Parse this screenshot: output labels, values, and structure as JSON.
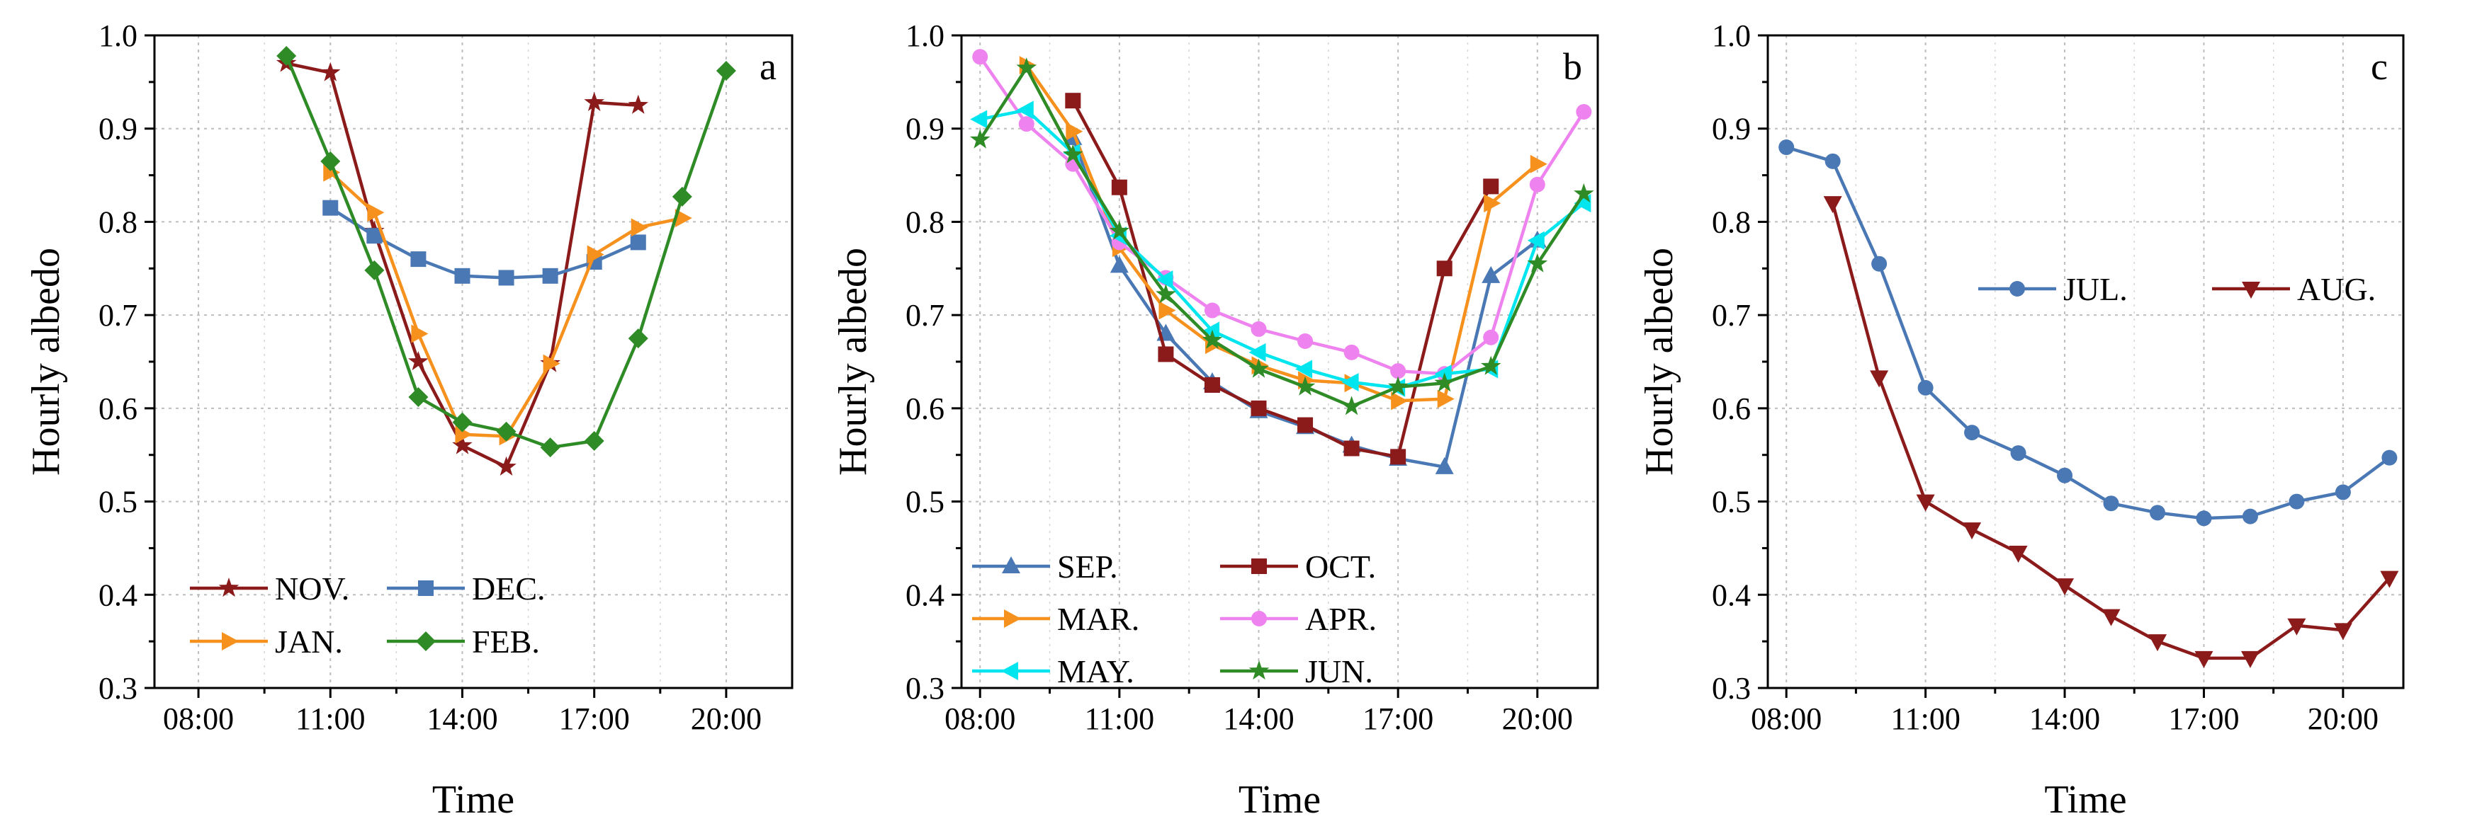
{
  "chart_data": [
    {
      "type": "line",
      "panel_label": "a",
      "xlabel": "Time",
      "ylabel": "Hourly albedo",
      "xlim": [
        7,
        21.5
      ],
      "ylim": [
        0.3,
        1.0
      ],
      "x_ticks": [
        8,
        11,
        14,
        17,
        20
      ],
      "x_tick_labels": [
        "08:00",
        "11:00",
        "14:00",
        "17:00",
        "20:00"
      ],
      "y_ticks": [
        0.3,
        0.4,
        0.5,
        0.6,
        0.7,
        0.8,
        0.9,
        1.0
      ],
      "y_tick_labels": [
        "0.3",
        "0.4",
        "0.5",
        "0.6",
        "0.7",
        "0.8",
        "0.9",
        "1.0"
      ],
      "grid": true,
      "legend_position": "bottom-left",
      "legend_columns": 2,
      "series": [
        {
          "name": "NOV.",
          "color": "#8B1A1A",
          "marker": "star",
          "x": [
            10,
            11,
            12,
            13,
            14,
            15,
            16,
            17,
            18
          ],
          "values": [
            0.97,
            0.96,
            0.79,
            0.65,
            0.56,
            0.537,
            0.648,
            0.928,
            0.925
          ]
        },
        {
          "name": "DEC.",
          "color": "#4A78B4",
          "marker": "square",
          "x": [
            11,
            12,
            13,
            14,
            15,
            16,
            17,
            18
          ],
          "values": [
            0.815,
            0.785,
            0.76,
            0.742,
            0.74,
            0.742,
            0.757,
            0.778
          ]
        },
        {
          "name": "JAN.",
          "color": "#F7911E",
          "marker": "triangle-right",
          "x": [
            11,
            12,
            13,
            14,
            15,
            16,
            17,
            18,
            19
          ],
          "values": [
            0.853,
            0.81,
            0.68,
            0.572,
            0.57,
            0.648,
            0.765,
            0.794,
            0.804
          ]
        },
        {
          "name": "FEB.",
          "color": "#2E8B26",
          "marker": "diamond",
          "x": [
            10,
            11,
            12,
            13,
            14,
            15,
            16,
            17,
            18,
            19,
            20
          ],
          "values": [
            0.978,
            0.865,
            0.748,
            0.612,
            0.585,
            0.575,
            0.558,
            0.565,
            0.675,
            0.827,
            0.962
          ]
        }
      ]
    },
    {
      "type": "line",
      "panel_label": "b",
      "xlabel": "Time",
      "ylabel": "Hourly albedo",
      "xlim": [
        7.6,
        21.3
      ],
      "ylim": [
        0.3,
        1.0
      ],
      "x_ticks": [
        8,
        11,
        14,
        17,
        20
      ],
      "x_tick_labels": [
        "08:00",
        "11:00",
        "14:00",
        "17:00",
        "20:00"
      ],
      "y_ticks": [
        0.3,
        0.4,
        0.5,
        0.6,
        0.7,
        0.8,
        0.9,
        1.0
      ],
      "y_tick_labels": [
        "0.3",
        "0.4",
        "0.5",
        "0.6",
        "0.7",
        "0.8",
        "0.9",
        "1.0"
      ],
      "grid": true,
      "legend_position": "bottom-left",
      "legend_columns": 2,
      "series": [
        {
          "name": "SEP.",
          "color": "#4A78B4",
          "marker": "triangle-up",
          "x": [
            10,
            11,
            12,
            13,
            14,
            15,
            16,
            17,
            18,
            19,
            20
          ],
          "values": [
            0.89,
            0.753,
            0.68,
            0.628,
            0.597,
            0.58,
            0.56,
            0.546,
            0.537,
            0.742,
            0.78
          ]
        },
        {
          "name": "OCT.",
          "color": "#8B1A1A",
          "marker": "square",
          "x": [
            10,
            11,
            12,
            13,
            14,
            15,
            16,
            17,
            18,
            19
          ],
          "values": [
            0.93,
            0.837,
            0.658,
            0.625,
            0.6,
            0.582,
            0.557,
            0.548,
            0.75,
            0.838
          ]
        },
        {
          "name": "MAR.",
          "color": "#F7911E",
          "marker": "triangle-right",
          "x": [
            9,
            10,
            11,
            12,
            13,
            14,
            15,
            16,
            17,
            18,
            19,
            20
          ],
          "values": [
            0.968,
            0.897,
            0.772,
            0.705,
            0.668,
            0.646,
            0.63,
            0.627,
            0.608,
            0.61,
            0.82,
            0.862
          ]
        },
        {
          "name": "APR.",
          "color": "#EE82EE",
          "marker": "circle",
          "x": [
            8,
            9,
            10,
            11,
            12,
            13,
            14,
            15,
            16,
            17,
            18,
            19,
            20,
            21
          ],
          "values": [
            0.977,
            0.905,
            0.862,
            0.778,
            0.74,
            0.705,
            0.685,
            0.672,
            0.66,
            0.64,
            0.637,
            0.676,
            0.84,
            0.918
          ]
        },
        {
          "name": "MAY.",
          "color": "#00E5EE",
          "marker": "triangle-left",
          "x": [
            8,
            9,
            10,
            11,
            12,
            13,
            14,
            15,
            16,
            17,
            18,
            19,
            20,
            21
          ],
          "values": [
            0.91,
            0.92,
            0.874,
            0.785,
            0.738,
            0.683,
            0.66,
            0.642,
            0.628,
            0.622,
            0.637,
            0.642,
            0.78,
            0.82
          ]
        },
        {
          "name": "JUN.",
          "color": "#2E8B26",
          "marker": "star",
          "x": [
            8,
            9,
            10,
            11,
            12,
            13,
            14,
            15,
            16,
            17,
            18,
            19,
            20,
            21
          ],
          "values": [
            0.888,
            0.965,
            0.872,
            0.79,
            0.722,
            0.673,
            0.642,
            0.623,
            0.602,
            0.623,
            0.627,
            0.645,
            0.755,
            0.83
          ]
        }
      ]
    },
    {
      "type": "line",
      "panel_label": "c",
      "xlabel": "Time",
      "ylabel": "Hourly albedo",
      "xlim": [
        7.6,
        21.3
      ],
      "ylim": [
        0.3,
        1.0
      ],
      "x_ticks": [
        8,
        11,
        14,
        17,
        20
      ],
      "x_tick_labels": [
        "08:00",
        "11:00",
        "14:00",
        "17:00",
        "20:00"
      ],
      "y_ticks": [
        0.3,
        0.4,
        0.5,
        0.6,
        0.7,
        0.8,
        0.9,
        1.0
      ],
      "y_tick_labels": [
        "0.3",
        "0.4",
        "0.5",
        "0.6",
        "0.7",
        "0.8",
        "0.9",
        "1.0"
      ],
      "grid": true,
      "legend_position": "center-right",
      "legend_columns": 2,
      "series": [
        {
          "name": "JUL.",
          "color": "#4A78B4",
          "marker": "circle",
          "x": [
            8,
            9,
            10,
            11,
            12,
            13,
            14,
            15,
            16,
            17,
            18,
            19,
            20,
            21
          ],
          "values": [
            0.88,
            0.865,
            0.755,
            0.622,
            0.574,
            0.552,
            0.528,
            0.498,
            0.488,
            0.482,
            0.484,
            0.5,
            0.51,
            0.547
          ]
        },
        {
          "name": "AUG.",
          "color": "#8B1A1A",
          "marker": "triangle-down",
          "x": [
            9,
            10,
            11,
            12,
            13,
            14,
            15,
            16,
            17,
            18,
            19,
            20,
            21
          ],
          "values": [
            0.82,
            0.633,
            0.5,
            0.47,
            0.445,
            0.41,
            0.377,
            0.35,
            0.332,
            0.332,
            0.367,
            0.362,
            0.418
          ]
        }
      ]
    }
  ]
}
